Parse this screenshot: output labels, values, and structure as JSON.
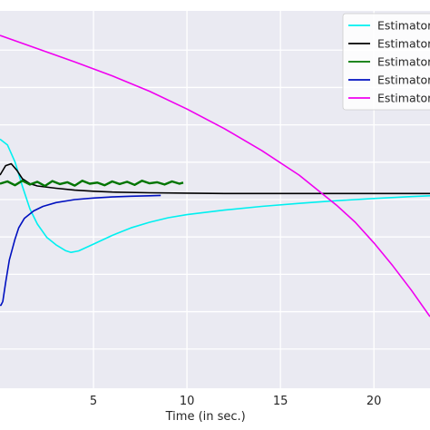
{
  "chart_data": {
    "type": "line",
    "title": "",
    "xlabel": "Time (in sec.)",
    "ylabel": "",
    "xlim": [
      0,
      23
    ],
    "ylim": [
      0,
      10
    ],
    "xticks": [
      5,
      10,
      15,
      20
    ],
    "grid": true,
    "legend_placement": "top-right",
    "background": "#eaeaf2",
    "series": [
      {
        "name": "Estimator",
        "color": "#00f0f0",
        "x": [
          0,
          0.4,
          0.8,
          1.2,
          1.6,
          2.0,
          2.5,
          3.0,
          3.5,
          3.8,
          4.2,
          5,
          6,
          7,
          8,
          9,
          10,
          12,
          14,
          16,
          18,
          20,
          22,
          23
        ],
        "y": [
          6.6,
          6.45,
          6.0,
          5.35,
          4.75,
          4.35,
          4.0,
          3.8,
          3.65,
          3.6,
          3.64,
          3.82,
          4.05,
          4.25,
          4.4,
          4.52,
          4.6,
          4.72,
          4.82,
          4.9,
          4.97,
          5.03,
          5.08,
          5.1
        ]
      },
      {
        "name": "Estimator",
        "color": "#000000",
        "x": [
          0,
          0.3,
          0.6,
          0.9,
          1.2,
          1.6,
          2.0,
          3,
          4,
          5,
          6,
          8,
          10,
          12,
          15,
          18,
          20,
          23
        ],
        "y": [
          5.65,
          5.9,
          5.95,
          5.78,
          5.55,
          5.42,
          5.36,
          5.3,
          5.25,
          5.22,
          5.2,
          5.18,
          5.17,
          5.16,
          5.16,
          5.16,
          5.16,
          5.16
        ]
      },
      {
        "name": "Estimator",
        "color": "#007500",
        "x": [
          0,
          0.4,
          0.8,
          1.2,
          1.6,
          2.0,
          2.4,
          2.8,
          3.2,
          3.6,
          4.0,
          4.4,
          4.8,
          5.2,
          5.6,
          6.0,
          6.4,
          6.8,
          7.2,
          7.6,
          8.0,
          8.4,
          8.8,
          9.2,
          9.6,
          9.8
        ],
        "y": [
          5.42,
          5.48,
          5.38,
          5.5,
          5.4,
          5.47,
          5.36,
          5.49,
          5.41,
          5.46,
          5.37,
          5.5,
          5.42,
          5.45,
          5.38,
          5.48,
          5.41,
          5.47,
          5.39,
          5.5,
          5.43,
          5.46,
          5.4,
          5.48,
          5.42,
          5.45
        ]
      },
      {
        "name": "Estimator",
        "color": "#0010c0",
        "x": [
          0,
          0.05,
          0.15,
          0.3,
          0.5,
          0.8,
          1.0,
          1.3,
          1.8,
          2.3,
          3.0,
          4.0,
          5.0,
          6.0,
          7.0,
          8.0,
          8.6
        ],
        "y": [
          2.2,
          2.2,
          2.3,
          2.8,
          3.4,
          3.95,
          4.25,
          4.5,
          4.7,
          4.82,
          4.92,
          5.0,
          5.04,
          5.07,
          5.09,
          5.1,
          5.11
        ]
      },
      {
        "name": "Estimator",
        "color": "#f000f0",
        "x": [
          0,
          2,
          4,
          6,
          8,
          10,
          12,
          14,
          16,
          18,
          19,
          20,
          21,
          22,
          23
        ],
        "y": [
          9.35,
          9.0,
          8.65,
          8.28,
          7.87,
          7.4,
          6.88,
          6.3,
          5.65,
          4.85,
          4.4,
          3.85,
          3.25,
          2.6,
          1.9
        ]
      }
    ]
  }
}
